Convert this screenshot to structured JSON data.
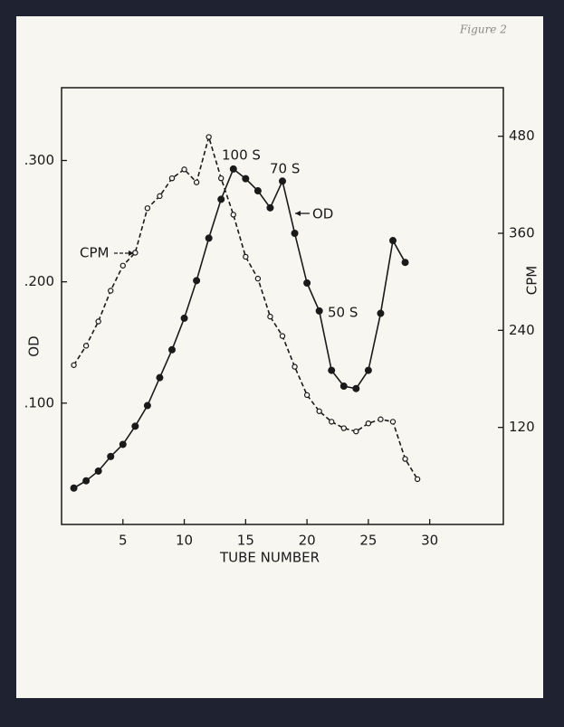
{
  "chart_data": {
    "type": "line",
    "x_label": "TUBE NUMBER",
    "y_label": "OD",
    "y2_label": "CPM",
    "xlim": [
      0,
      36
    ],
    "xticks": [
      5,
      10,
      15,
      20,
      25,
      30
    ],
    "ylim": [
      0,
      0.36
    ],
    "yticks": [
      {
        "value": 0.1,
        "label": ".100"
      },
      {
        "value": 0.2,
        "label": ".200"
      },
      {
        "value": 0.3,
        "label": ".300"
      }
    ],
    "y2lim": [
      0,
      540
    ],
    "y2ticks": [
      120,
      240,
      360,
      480
    ],
    "series": [
      {
        "name": "OD",
        "color": "#1a1a1a",
        "linestyle": "solid",
        "marker": "filled",
        "x": [
          1,
          2,
          3,
          4,
          5,
          6,
          7,
          8,
          9,
          10,
          11,
          12,
          13,
          14,
          15,
          16,
          17,
          18,
          19,
          20,
          21,
          22,
          23,
          24,
          25,
          26,
          27,
          28
        ],
        "values": [
          0.03,
          0.036,
          0.044,
          0.056,
          0.066,
          0.081,
          0.098,
          0.121,
          0.144,
          0.17,
          0.201,
          0.236,
          0.268,
          0.293,
          0.285,
          0.275,
          0.261,
          0.283,
          0.24,
          0.199,
          0.176,
          0.127,
          0.114,
          0.112,
          0.127,
          0.174,
          0.234,
          0.216
        ]
      },
      {
        "name": "CPM",
        "color": "#1a1a1a",
        "linestyle": "dashed",
        "marker": "open",
        "axis": "y2",
        "x": [
          1,
          2,
          3,
          4,
          5,
          6,
          7,
          8,
          9,
          10,
          11,
          12,
          13,
          14,
          15,
          16,
          17,
          18,
          19,
          20,
          21,
          22,
          23,
          24,
          25,
          26,
          27,
          28,
          29
        ],
        "values": [
          197,
          221,
          251,
          289,
          320,
          336,
          391,
          406,
          428,
          439,
          423,
          479,
          428,
          383,
          331,
          304,
          257,
          233,
          195,
          160,
          140,
          127,
          119,
          115,
          125,
          130,
          127,
          81,
          56
        ]
      }
    ],
    "annotations": [
      "100 S",
      "70 S",
      "50 S",
      "Figure 2"
    ]
  }
}
